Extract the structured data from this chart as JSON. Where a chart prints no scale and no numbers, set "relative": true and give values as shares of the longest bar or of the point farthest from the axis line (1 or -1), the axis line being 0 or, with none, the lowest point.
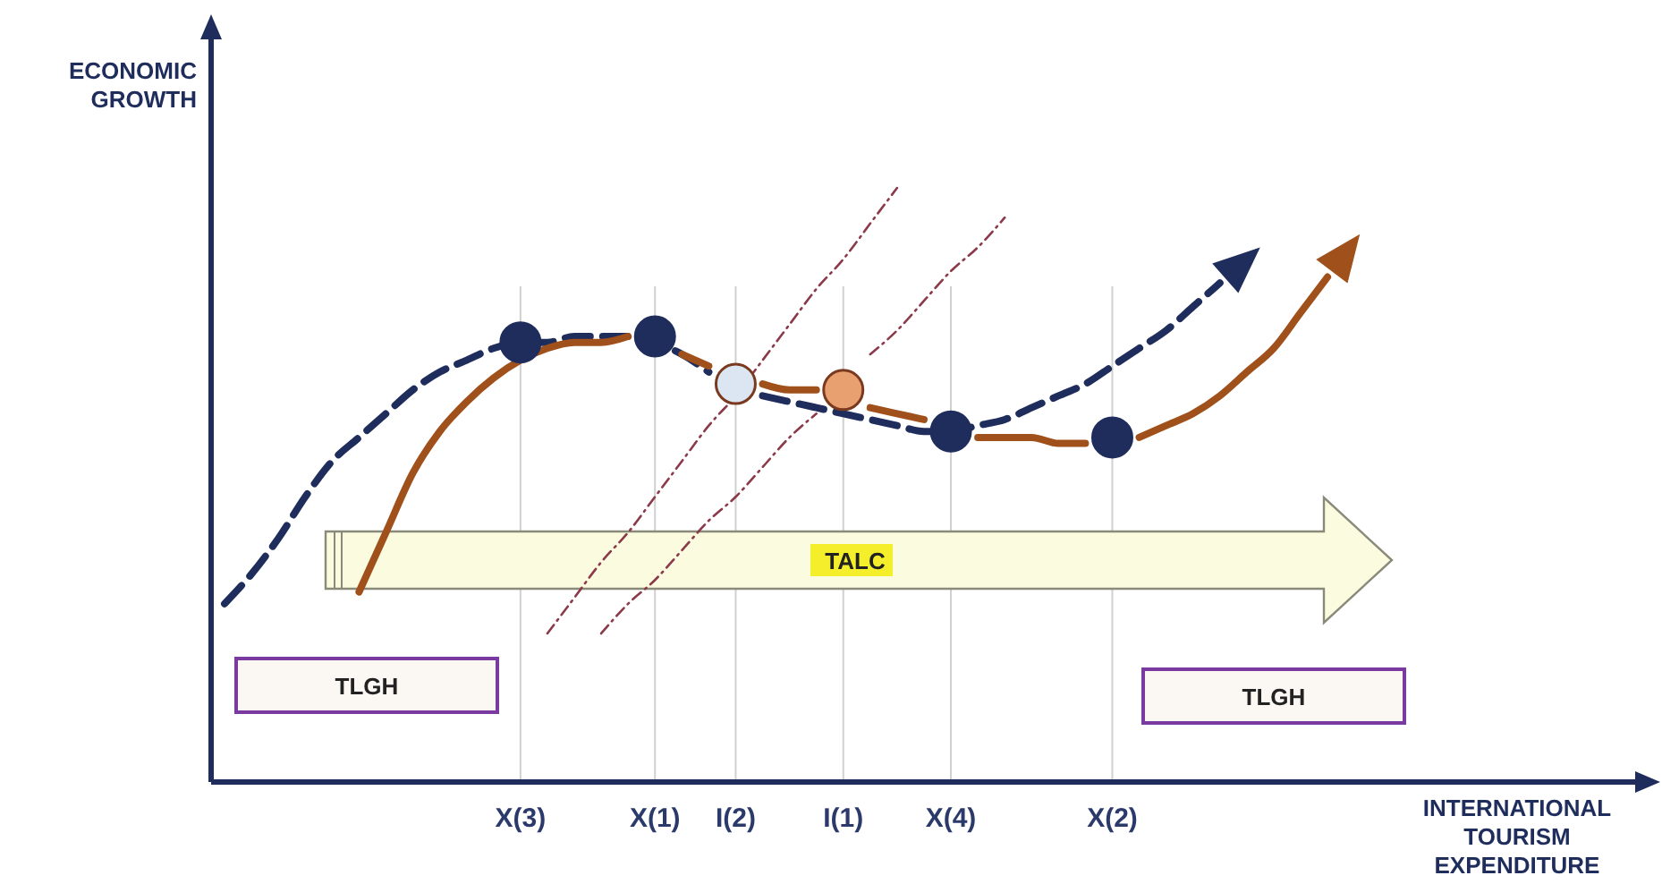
{
  "chart_data": {
    "type": "line",
    "relative": true,
    "xlabel": "INTERNATIONAL TOURISM EXPENDITURE",
    "ylabel": "ECONOMIC GROWTH",
    "categories": [
      null,
      null,
      null,
      null,
      null,
      null,
      null,
      null,
      null,
      null,
      null,
      "X(3)",
      null,
      null,
      null,
      null,
      "X(1)",
      null,
      null,
      "I(2)",
      null,
      null,
      null,
      "I(1)",
      null,
      null,
      null,
      "X(4)",
      null,
      null,
      null,
      null,
      null,
      "X(2)",
      null,
      null,
      null,
      null,
      null,
      null,
      null,
      null,
      null,
      null,
      null,
      null,
      null,
      null,
      null,
      null,
      null,
      null,
      null,
      null
    ],
    "grid": "x",
    "marker": "none",
    "annotations": [
      "TALC",
      "TLGH",
      "TLGH"
    ],
    "series": [
      {
        "color": "#1f2d5c",
        "line_style": "dashed",
        "values": [
          0.3,
          0.35,
          0.41,
          0.48,
          0.54,
          0.58,
          0.62,
          0.66,
          0.69,
          0.71,
          0.73,
          0.74,
          0.74,
          0.75,
          0.75,
          0.75,
          0.74,
          0.72,
          0.69,
          null,
          0.65,
          0.64,
          0.63,
          0.62,
          0.61,
          0.6,
          0.59,
          0.59,
          0.6,
          0.61,
          0.63,
          0.65,
          0.67,
          0.7,
          0.73,
          0.76,
          0.8,
          0.84,
          null,
          null,
          null,
          null,
          null,
          null,
          null,
          null,
          null,
          null,
          null,
          null,
          null,
          null,
          null,
          null
        ]
      },
      {
        "color": "#a0501a",
        "line_style": "solid",
        "values": [
          null,
          null,
          null,
          null,
          null,
          0.32,
          0.42,
          0.52,
          0.59,
          0.64,
          0.68,
          0.71,
          0.73,
          0.74,
          0.74,
          0.75,
          null,
          0.72,
          0.7,
          null,
          0.67,
          0.66,
          0.66,
          null,
          0.63,
          0.62,
          0.61,
          null,
          0.58,
          0.58,
          0.58,
          0.57,
          0.57,
          null,
          0.58,
          0.6,
          0.62,
          0.65,
          0.69,
          0.73,
          0.79,
          0.85,
          null,
          null,
          null,
          null,
          null,
          null,
          null,
          null,
          null,
          null,
          null,
          null
        ]
      },
      {
        "color": "#8b3a4a",
        "line_style": "dotted",
        "values": [
          null,
          null,
          null,
          null,
          null,
          null,
          null,
          null,
          null,
          null,
          null,
          null,
          0.25,
          0.31,
          0.37,
          0.42,
          0.48,
          0.54,
          0.6,
          0.65,
          0.71,
          0.77,
          0.83,
          0.88,
          0.94,
          1.0,
          null,
          null,
          null,
          null,
          null,
          null,
          null,
          null,
          null,
          null,
          null,
          null,
          null,
          null,
          null,
          null,
          null,
          null,
          null,
          null,
          null,
          null,
          null,
          null,
          null,
          null,
          null,
          null
        ]
      },
      {
        "color": "#8b3a4a",
        "line_style": "dotted",
        "values": [
          null,
          null,
          null,
          null,
          null,
          null,
          null,
          null,
          null,
          null,
          null,
          null,
          null,
          null,
          0.25,
          0.3,
          0.34,
          0.39,
          0.44,
          0.48,
          0.53,
          0.58,
          0.62,
          null,
          0.72,
          0.76,
          0.81,
          0.86,
          0.9,
          0.95,
          null,
          null,
          null,
          null,
          null,
          null,
          null,
          null,
          null,
          null,
          null,
          null,
          null,
          null,
          null,
          null,
          null,
          null,
          null,
          null,
          null,
          null,
          null,
          null
        ]
      },
      {
        "type": "scatter",
        "marker": "circle",
        "color": "#1f2d5c",
        "x": [
          "X(3)",
          "X(1)",
          "X(4)",
          "X(2)"
        ],
        "values": [
          0.74,
          0.75,
          0.59,
          0.58
        ]
      },
      {
        "type": "scatter",
        "marker": "circle",
        "color": "#dce6f2",
        "x": [
          "I(2)"
        ],
        "values": [
          0.67
        ]
      },
      {
        "type": "scatter",
        "marker": "circle",
        "color": "#e8a070",
        "x": [
          "I(1)"
        ],
        "values": [
          0.66
        ]
      }
    ]
  }
}
